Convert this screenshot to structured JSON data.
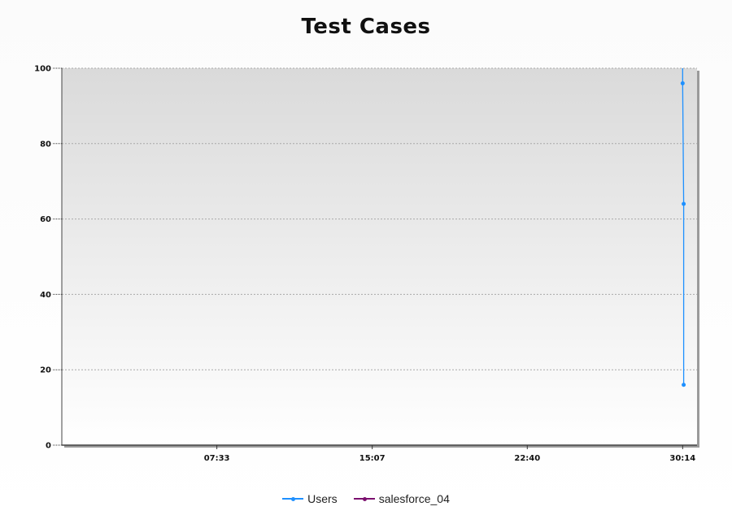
{
  "chart_data": {
    "type": "line",
    "title": "Test Cases",
    "xlabel": "",
    "ylabel": "",
    "ylim": [
      0,
      100
    ],
    "yticks": [
      "0",
      "20",
      "40",
      "60",
      "80",
      "100"
    ],
    "xlim": [
      "00:00",
      "30:56"
    ],
    "xticks": [
      "07:33",
      "15:07",
      "22:40",
      "30:14"
    ],
    "grid": true,
    "legend_position": "bottom-center",
    "series": [
      {
        "name": "Users",
        "color": "#1e90ff",
        "points": [
          {
            "x": "30:14",
            "y": 100
          },
          {
            "x": "30:14",
            "y": 96
          },
          {
            "x": "30:17",
            "y": 64
          },
          {
            "x": "30:17",
            "y": 16
          }
        ]
      },
      {
        "name": "salesforce_04",
        "color": "#7b0f6e",
        "points": []
      }
    ]
  }
}
